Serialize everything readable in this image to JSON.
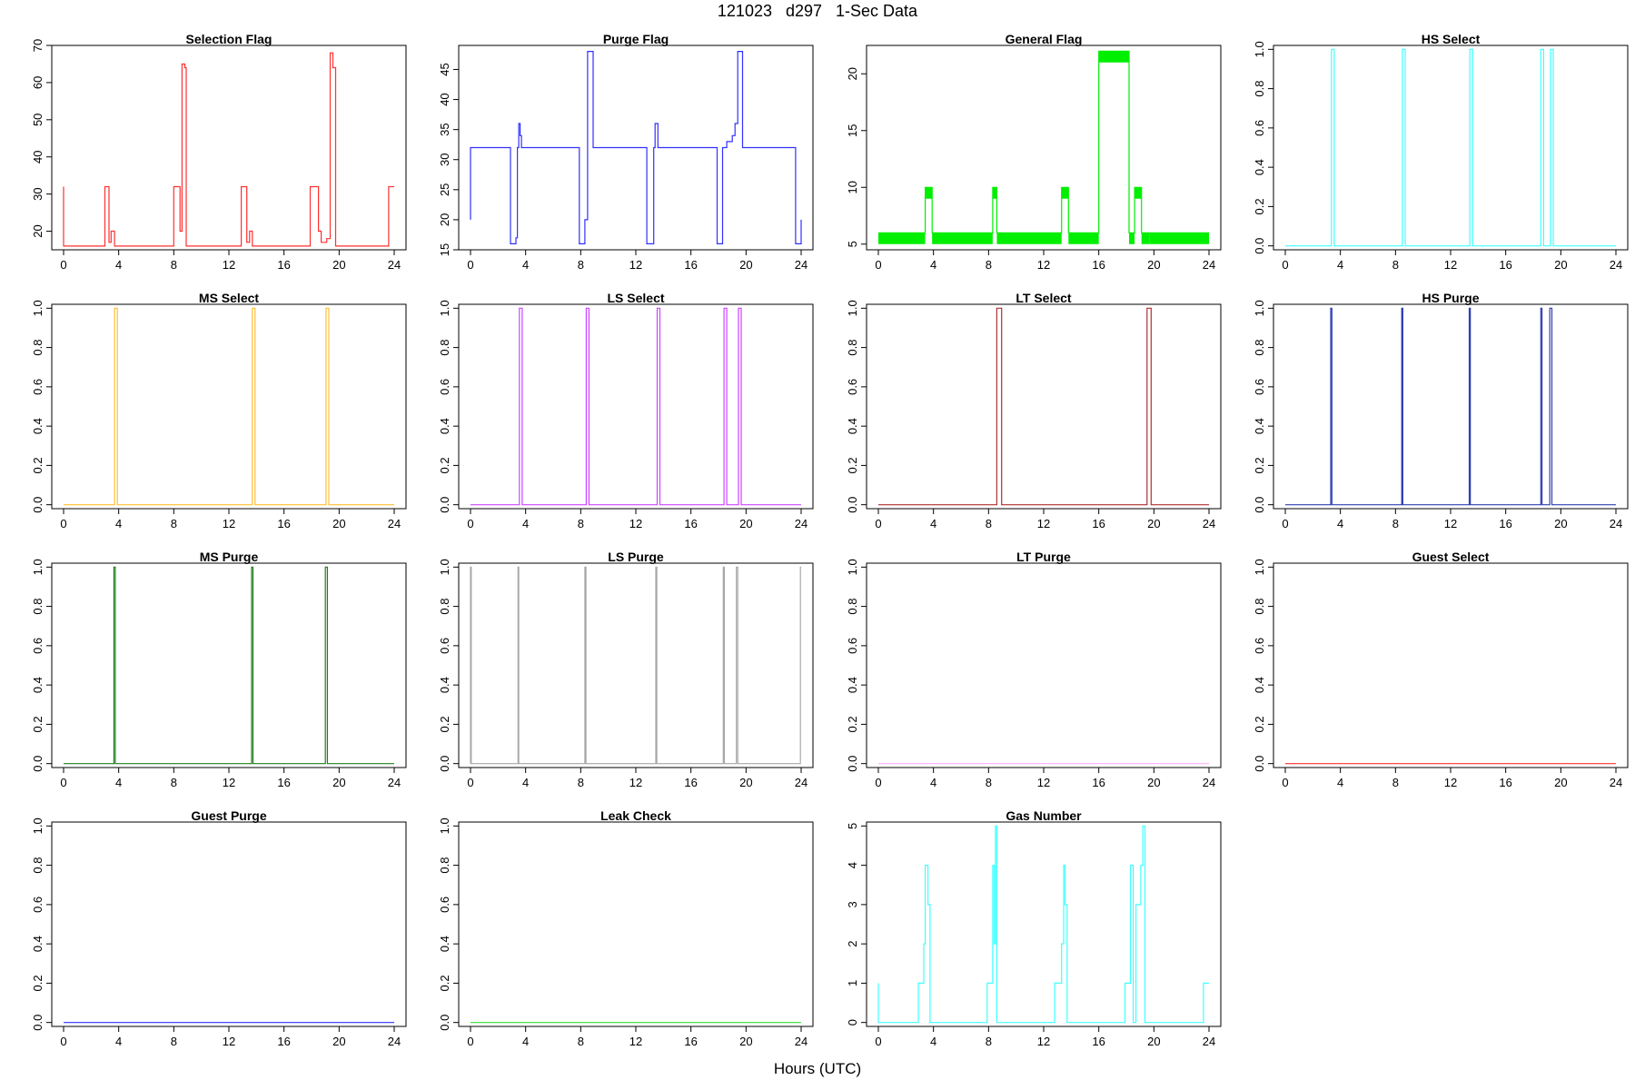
{
  "figure": {
    "title": "121023   d297   1-Sec Data",
    "xlabel": "Hours (UTC)"
  },
  "chart_data": [
    {
      "type": "line",
      "title": "Selection Flag",
      "color": "#ff3030",
      "xlim": [
        0,
        24
      ],
      "ylim": [
        15,
        70
      ],
      "xticks": [
        0,
        4,
        8,
        12,
        16,
        20,
        24
      ],
      "yticks": [
        20,
        30,
        40,
        50,
        60,
        70
      ],
      "x": [
        0,
        0,
        3,
        3,
        3.3,
        3.3,
        3.45,
        3.45,
        3.7,
        3.7,
        8,
        8,
        8.45,
        8.45,
        8.6,
        8.6,
        8.8,
        8.8,
        8.9,
        8.9,
        12.9,
        12.9,
        13.3,
        13.3,
        13.5,
        13.5,
        13.7,
        13.7,
        17.9,
        17.9,
        18.5,
        18.5,
        18.7,
        18.7,
        19.1,
        19.1,
        19.35,
        19.35,
        19.55,
        19.55,
        19.75,
        19.75,
        23.6,
        23.6,
        24
      ],
      "y": [
        32,
        16,
        16,
        32,
        32,
        17,
        17,
        20,
        20,
        16,
        16,
        32,
        32,
        20,
        20,
        65,
        65,
        64,
        64,
        16,
        16,
        32,
        32,
        17,
        17,
        20,
        20,
        16,
        16,
        32,
        32,
        20,
        20,
        17,
        17,
        18,
        18,
        68,
        68,
        64,
        64,
        16,
        16,
        32,
        32
      ]
    },
    {
      "type": "line",
      "title": "Purge Flag",
      "color": "#3030ff",
      "xlim": [
        0,
        24
      ],
      "ylim": [
        15,
        49
      ],
      "xticks": [
        0,
        4,
        8,
        12,
        16,
        20,
        24
      ],
      "yticks": [
        15,
        20,
        25,
        30,
        35,
        40,
        45
      ],
      "x": [
        0,
        0,
        2.9,
        2.9,
        3.3,
        3.3,
        3.4,
        3.4,
        3.5,
        3.5,
        3.6,
        3.6,
        3.7,
        3.7,
        7.9,
        7.9,
        8.3,
        8.3,
        8.5,
        8.5,
        8.9,
        8.9,
        12.8,
        12.8,
        13.3,
        13.3,
        13.4,
        13.4,
        13.6,
        13.6,
        17.9,
        17.9,
        18.3,
        18.3,
        18.6,
        18.6,
        19,
        19,
        19.2,
        19.2,
        19.4,
        19.4,
        19.75,
        19.75,
        23.6,
        23.6,
        24,
        24
      ],
      "y": [
        20,
        32,
        32,
        16,
        16,
        17,
        17,
        32,
        32,
        36,
        36,
        34,
        34,
        32,
        32,
        16,
        16,
        20,
        20,
        48,
        48,
        32,
        32,
        16,
        16,
        32,
        32,
        36,
        36,
        32,
        32,
        16,
        16,
        32,
        32,
        33,
        33,
        34,
        34,
        36,
        36,
        48,
        48,
        32,
        32,
        16,
        16,
        20
      ]
    },
    {
      "type": "line",
      "title": "General Flag",
      "color": "#00ee00",
      "xlim": [
        0,
        24
      ],
      "ylim": [
        4.5,
        22.5
      ],
      "xticks": [
        0,
        4,
        8,
        12,
        16,
        20,
        24
      ],
      "yticks": [
        5,
        10,
        15,
        20
      ],
      "x": [
        0,
        3.4,
        3.4,
        3.9,
        3.9,
        8.3,
        8.3,
        8.6,
        8.6,
        13.3,
        13.3,
        13.8,
        13.8,
        16,
        16,
        18.2,
        18.2,
        18.6,
        18.6,
        19.1,
        19.1,
        19.7,
        19.7,
        24
      ],
      "y": [
        6,
        6,
        10,
        10,
        6,
        6,
        10,
        10,
        6,
        6,
        10,
        10,
        6,
        6,
        22,
        22,
        6,
        6,
        10,
        10,
        6,
        6,
        6,
        6
      ],
      "bands": [
        {
          "x0": 0,
          "x1": 3.4,
          "y0": 5,
          "y1": 6
        },
        {
          "x0": 3.4,
          "x1": 3.9,
          "y0": 9,
          "y1": 10
        },
        {
          "x0": 3.9,
          "x1": 8.3,
          "y0": 5,
          "y1": 6
        },
        {
          "x0": 8.3,
          "x1": 8.6,
          "y0": 9,
          "y1": 10
        },
        {
          "x0": 8.6,
          "x1": 13.3,
          "y0": 5,
          "y1": 6
        },
        {
          "x0": 13.3,
          "x1": 13.8,
          "y0": 9,
          "y1": 10
        },
        {
          "x0": 13.8,
          "x1": 16,
          "y0": 5,
          "y1": 6
        },
        {
          "x0": 16,
          "x1": 18.2,
          "y0": 21,
          "y1": 22
        },
        {
          "x0": 18.2,
          "x1": 18.6,
          "y0": 5,
          "y1": 6
        },
        {
          "x0": 18.6,
          "x1": 19.1,
          "y0": 9,
          "y1": 10
        },
        {
          "x0": 19.1,
          "x1": 19.7,
          "y0": 5,
          "y1": 6
        },
        {
          "x0": 19.7,
          "x1": 24,
          "y0": 5,
          "y1": 6
        }
      ]
    },
    {
      "type": "line",
      "title": "HS Select",
      "color": "#40ffff",
      "xlim": [
        0,
        24
      ],
      "ylim": [
        -0.02,
        1.02
      ],
      "xticks": [
        0,
        4,
        8,
        12,
        16,
        20,
        24
      ],
      "yticks": [
        0.0,
        0.2,
        0.4,
        0.6,
        0.8,
        1.0
      ],
      "x": [
        0,
        3.35,
        3.35,
        3.55,
        3.55,
        8.5,
        8.5,
        8.7,
        8.7,
        13.4,
        13.4,
        13.6,
        13.6,
        18.55,
        18.55,
        18.75,
        18.75,
        19.25,
        19.25,
        19.45,
        19.45,
        24
      ],
      "y": [
        0,
        0,
        1,
        1,
        0,
        0,
        1,
        1,
        0,
        0,
        1,
        1,
        0,
        0,
        1,
        1,
        0,
        0,
        1,
        1,
        0,
        0
      ]
    },
    {
      "type": "line",
      "title": "MS Select",
      "color": "#ffc030",
      "xlim": [
        0,
        24
      ],
      "ylim": [
        -0.02,
        1.02
      ],
      "xticks": [
        0,
        4,
        8,
        12,
        16,
        20,
        24
      ],
      "yticks": [
        0.0,
        0.2,
        0.4,
        0.6,
        0.8,
        1.0
      ],
      "x": [
        0,
        3.7,
        3.7,
        3.9,
        3.9,
        13.7,
        13.7,
        13.9,
        13.9,
        19.05,
        19.05,
        19.25,
        19.25,
        24
      ],
      "y": [
        0,
        0,
        1,
        1,
        0,
        0,
        1,
        1,
        0,
        0,
        1,
        1,
        0,
        0
      ]
    },
    {
      "type": "line",
      "title": "LS Select",
      "color": "#cc44ff",
      "xlim": [
        0,
        24
      ],
      "ylim": [
        -0.02,
        1.02
      ],
      "xticks": [
        0,
        4,
        8,
        12,
        16,
        20,
        24
      ],
      "yticks": [
        0.0,
        0.2,
        0.4,
        0.6,
        0.8,
        1.0
      ],
      "x": [
        0,
        3.55,
        3.55,
        3.75,
        3.75,
        8.4,
        8.4,
        8.6,
        8.6,
        13.55,
        13.55,
        13.75,
        13.75,
        18.4,
        18.4,
        18.6,
        18.6,
        19.45,
        19.45,
        19.65,
        19.65,
        24
      ],
      "y": [
        0,
        0,
        1,
        1,
        0,
        0,
        1,
        1,
        0,
        0,
        1,
        1,
        0,
        0,
        1,
        1,
        0,
        0,
        1,
        1,
        0,
        0
      ]
    },
    {
      "type": "line",
      "title": "LT Select",
      "color": "#b03030",
      "xlim": [
        0,
        24
      ],
      "ylim": [
        -0.02,
        1.02
      ],
      "xticks": [
        0,
        4,
        8,
        12,
        16,
        20,
        24
      ],
      "yticks": [
        0.0,
        0.2,
        0.4,
        0.6,
        0.8,
        1.0
      ],
      "x": [
        0,
        8.6,
        8.6,
        8.95,
        8.95,
        19.5,
        19.5,
        19.8,
        19.8,
        24
      ],
      "y": [
        0,
        0,
        1,
        1,
        0,
        0,
        1,
        1,
        0,
        0
      ]
    },
    {
      "type": "line",
      "title": "HS Purge",
      "color": "#3040b0",
      "xlim": [
        0,
        24
      ],
      "ylim": [
        -0.02,
        1.02
      ],
      "xticks": [
        0,
        4,
        8,
        12,
        16,
        20,
        24
      ],
      "yticks": [
        0.0,
        0.2,
        0.4,
        0.6,
        0.8,
        1.0
      ],
      "x": [
        0,
        3.3,
        3.3,
        3.38,
        3.38,
        8.45,
        8.45,
        8.53,
        8.53,
        13.35,
        13.35,
        13.43,
        13.43,
        18.55,
        18.55,
        18.63,
        18.63,
        19.2,
        19.2,
        19.35,
        19.35,
        24
      ],
      "y": [
        0,
        0,
        1,
        1,
        0,
        0,
        1,
        1,
        0,
        0,
        1,
        1,
        0,
        0,
        1,
        1,
        0,
        0,
        1,
        1,
        0,
        0
      ]
    },
    {
      "type": "line",
      "title": "MS Purge",
      "color": "#208020",
      "xlim": [
        0,
        24
      ],
      "ylim": [
        -0.02,
        1.02
      ],
      "xticks": [
        0,
        4,
        8,
        12,
        16,
        20,
        24
      ],
      "yticks": [
        0.0,
        0.2,
        0.4,
        0.6,
        0.8,
        1.0
      ],
      "x": [
        0,
        3.65,
        3.65,
        3.75,
        3.75,
        13.65,
        13.65,
        13.75,
        13.75,
        19.0,
        19.0,
        19.15,
        19.15,
        24
      ],
      "y": [
        0,
        0,
        1,
        1,
        0,
        0,
        1,
        1,
        0,
        0,
        1,
        1,
        0,
        0
      ]
    },
    {
      "type": "line",
      "title": "LS Purge",
      "color": "#a8a8a8",
      "xlim": [
        0,
        24
      ],
      "ylim": [
        -0.02,
        1.02
      ],
      "xticks": [
        0,
        4,
        8,
        12,
        16,
        20,
        24
      ],
      "yticks": [
        0.0,
        0.2,
        0.4,
        0.6,
        0.8,
        1.0
      ],
      "x": [
        0,
        0,
        0.05,
        0.05,
        3.45,
        3.45,
        3.5,
        3.5,
        8.3,
        8.3,
        8.38,
        8.38,
        13.45,
        13.45,
        13.52,
        13.52,
        18.35,
        18.35,
        18.42,
        18.42,
        19.3,
        19.3,
        19.4,
        19.4,
        23.95,
        23.95,
        24
      ],
      "y": [
        0,
        1,
        1,
        0,
        0,
        1,
        1,
        0,
        0,
        1,
        1,
        0,
        0,
        1,
        1,
        0,
        0,
        1,
        1,
        0,
        0,
        1,
        1,
        0,
        0,
        1,
        1
      ]
    },
    {
      "type": "line",
      "title": "LT Purge",
      "color": "#ffb0ff",
      "xlim": [
        0,
        24
      ],
      "ylim": [
        -0.02,
        1.02
      ],
      "xticks": [
        0,
        4,
        8,
        12,
        16,
        20,
        24
      ],
      "yticks": [
        0.0,
        0.2,
        0.4,
        0.6,
        0.8,
        1.0
      ],
      "x": [
        0,
        24
      ],
      "y": [
        0,
        0
      ]
    },
    {
      "type": "line",
      "title": "Guest Select",
      "color": "#ff3030",
      "xlim": [
        0,
        24
      ],
      "ylim": [
        -0.02,
        1.02
      ],
      "xticks": [
        0,
        4,
        8,
        12,
        16,
        20,
        24
      ],
      "yticks": [
        0.0,
        0.2,
        0.4,
        0.6,
        0.8,
        1.0
      ],
      "x": [
        0,
        24
      ],
      "y": [
        0,
        0
      ]
    },
    {
      "type": "line",
      "title": "Guest Purge",
      "color": "#3030ff",
      "xlim": [
        0,
        24
      ],
      "ylim": [
        -0.02,
        1.02
      ],
      "xticks": [
        0,
        4,
        8,
        12,
        16,
        20,
        24
      ],
      "yticks": [
        0.0,
        0.2,
        0.4,
        0.6,
        0.8,
        1.0
      ],
      "x": [
        0,
        24
      ],
      "y": [
        0,
        0
      ]
    },
    {
      "type": "line",
      "title": "Leak Check",
      "color": "#30e030",
      "xlim": [
        0,
        24
      ],
      "ylim": [
        -0.02,
        1.02
      ],
      "xticks": [
        0,
        4,
        8,
        12,
        16,
        20,
        24
      ],
      "yticks": [
        0.0,
        0.2,
        0.4,
        0.6,
        0.8,
        1.0
      ],
      "x": [
        0,
        24
      ],
      "y": [
        0,
        0
      ]
    },
    {
      "type": "line",
      "title": "Gas Number",
      "color": "#40ffff",
      "xlim": [
        0,
        24
      ],
      "ylim": [
        -0.1,
        5.1
      ],
      "xticks": [
        0,
        4,
        8,
        12,
        16,
        20,
        24
      ],
      "yticks": [
        0,
        1,
        2,
        3,
        4,
        5
      ],
      "x": [
        0,
        0,
        0.05,
        0.05,
        2.9,
        2.9,
        3.3,
        3.3,
        3.4,
        3.4,
        3.6,
        3.6,
        3.75,
        3.75,
        3.9,
        3.9,
        7.9,
        7.9,
        8.3,
        8.3,
        8.4,
        8.4,
        8.5,
        8.5,
        8.6,
        8.6,
        8.8,
        8.8,
        8.95,
        8.95,
        12.8,
        12.8,
        13.3,
        13.3,
        13.45,
        13.45,
        13.55,
        13.55,
        13.7,
        13.7,
        13.85,
        13.85,
        17.9,
        17.9,
        18.3,
        18.3,
        18.5,
        18.5,
        18.7,
        18.7,
        19.05,
        19.05,
        19.2,
        19.2,
        19.35,
        19.35,
        19.5,
        19.5,
        19.7,
        19.7,
        23.6,
        23.6,
        24
      ],
      "y": [
        1,
        0,
        0,
        0,
        0,
        1,
        1,
        2,
        2,
        4,
        4,
        3,
        3,
        0,
        0,
        0,
        0,
        1,
        1,
        4,
        4,
        2,
        2,
        5,
        5,
        0,
        0,
        0,
        0,
        0,
        0,
        1,
        1,
        2,
        2,
        4,
        4,
        3,
        3,
        0,
        0,
        0,
        0,
        1,
        1,
        4,
        4,
        0,
        0,
        3,
        3,
        4,
        4,
        5,
        5,
        0,
        0,
        0,
        0,
        0,
        0,
        1,
        1
      ]
    }
  ]
}
